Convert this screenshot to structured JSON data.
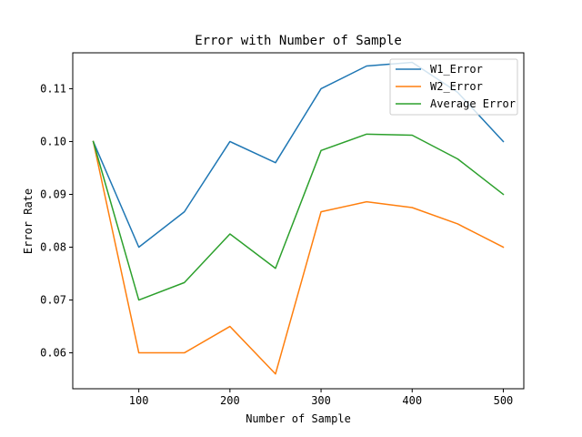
{
  "chart_data": {
    "type": "line",
    "title": "Error with Number of Sample",
    "xlabel": "Number of Sample",
    "ylabel": "Error Rate",
    "x": [
      50,
      100,
      150,
      200,
      250,
      300,
      350,
      400,
      450,
      500
    ],
    "xlim": [
      27.5,
      522.5
    ],
    "ylim": [
      0.0532,
      0.1168
    ],
    "xticks": [
      100,
      200,
      300,
      400,
      500
    ],
    "xtick_labels": [
      "100",
      "200",
      "300",
      "400",
      "500"
    ],
    "yticks": [
      0.06,
      0.07,
      0.08,
      0.09,
      0.1,
      0.11
    ],
    "ytick_labels": [
      "0.06",
      "0.07",
      "0.08",
      "0.09",
      "0.10",
      "0.11"
    ],
    "grid": false,
    "legend_position": "top-right",
    "series": [
      {
        "name": "W1_Error",
        "color": "#1f77b4",
        "values": [
          0.1,
          0.08,
          0.0867,
          0.1,
          0.096,
          0.11,
          0.1143,
          0.115,
          0.1093,
          0.1
        ]
      },
      {
        "name": "W2_Error",
        "color": "#ff7f0e",
        "values": [
          0.1,
          0.06,
          0.06,
          0.065,
          0.056,
          0.0867,
          0.0886,
          0.0875,
          0.0844,
          0.08
        ]
      },
      {
        "name": "Average Error",
        "color": "#2ca02c",
        "values": [
          0.1,
          0.07,
          0.0733,
          0.0825,
          0.076,
          0.0983,
          0.1014,
          0.1012,
          0.0967,
          0.09
        ]
      }
    ]
  }
}
